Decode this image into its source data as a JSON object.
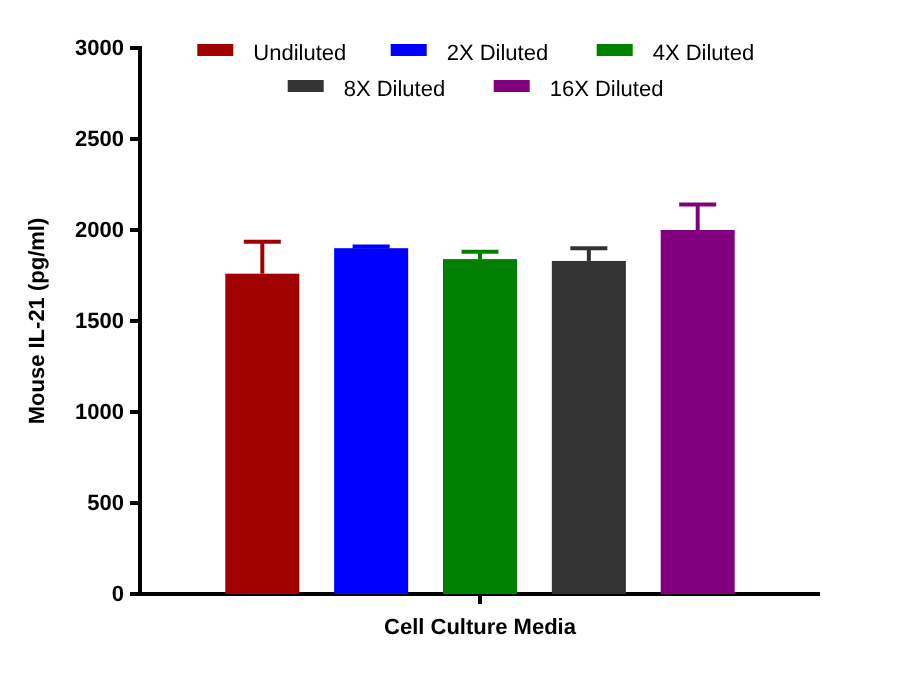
{
  "chart_data": {
    "type": "bar",
    "xlabel": "Cell Culture Media",
    "ylabel": "Mouse IL-21 (pg/ml)",
    "categories": [
      null
    ],
    "series": [
      {
        "name": "Undiluted",
        "color": "#a00000",
        "values": [
          1760
        ],
        "errors": [
          175
        ]
      },
      {
        "name": "2X Diluted",
        "color": "#0000ff",
        "values": [
          1900
        ],
        "errors": [
          10
        ]
      },
      {
        "name": "4X Diluted",
        "color": "#008000",
        "values": [
          1840
        ],
        "errors": [
          40
        ]
      },
      {
        "name": "8X Diluted",
        "color": "#333333",
        "values": [
          1830
        ],
        "errors": [
          70
        ]
      },
      {
        "name": "16X Diluted",
        "color": "#800080",
        "values": [
          2000
        ],
        "errors": [
          140
        ]
      }
    ],
    "ylim": [
      0,
      3000
    ],
    "yticks": [
      0,
      500,
      1000,
      1500,
      2000,
      2500,
      3000
    ],
    "legend": "top",
    "grid": false
  }
}
